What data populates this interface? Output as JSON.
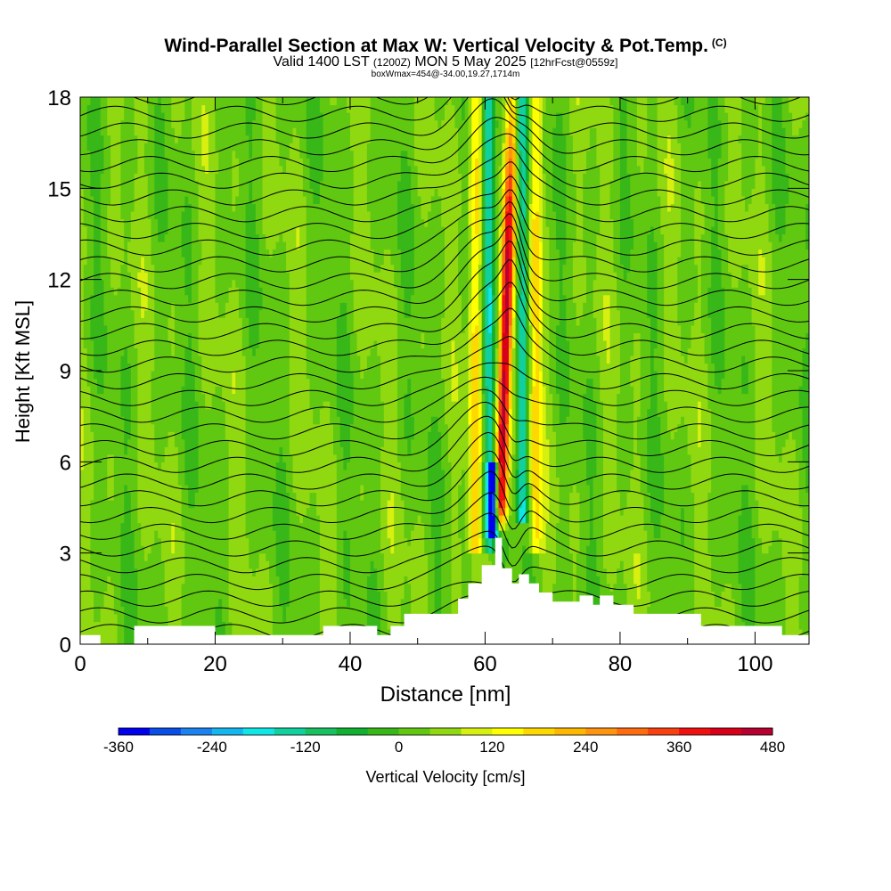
{
  "header": {
    "title": "Wind-Parallel Section at Max W: Vertical Velocity & Pot.Temp.",
    "title_mark": "(C)",
    "valid_prefix": "Valid 1400 LST",
    "valid_utc": "(1200Z)",
    "valid_date": "MON 5 May 2025",
    "forecast_info": "[12hrFcst@0559z]",
    "box_info": "boxWmax=454@-34.00,19.27,1714m"
  },
  "chart_data": {
    "type": "heatmap",
    "xlabel": "Distance [nm]",
    "ylabel": "Height [Kft MSL]",
    "xlim": [
      0,
      108
    ],
    "ylim": [
      0,
      18
    ],
    "x_ticks": [
      "0",
      "20",
      "40",
      "60",
      "80",
      "100"
    ],
    "y_ticks": [
      "0",
      "3",
      "6",
      "9",
      "12",
      "15",
      "18"
    ],
    "colorbar": {
      "label": "Vertical Velocity [cm/s]",
      "min": -360,
      "max": 480,
      "step": 40,
      "tick_labels": [
        "-360",
        "-240",
        "-120",
        "0",
        "120",
        "240",
        "360",
        "480"
      ],
      "colors": [
        "#0000ee",
        "#0a4ee8",
        "#1c82f0",
        "#14b6f0",
        "#10e6e6",
        "#10d0a0",
        "#18c060",
        "#10b030",
        "#38b818",
        "#60c810",
        "#90d810",
        "#d8f010",
        "#ffff00",
        "#ffd800",
        "#ffb800",
        "#ff9410",
        "#ff6c10",
        "#f84010",
        "#f01010",
        "#d80018",
        "#b80030"
      ]
    },
    "terrain_profile": {
      "x": [
        0,
        3,
        3,
        8,
        8,
        20,
        20,
        36,
        36,
        44,
        44,
        46,
        46,
        48,
        48,
        56,
        56,
        57.5,
        57.5,
        59.5,
        59.5,
        61.5,
        61.5,
        62.5,
        62.5,
        64,
        64,
        65,
        65,
        66.5,
        66.5,
        68,
        68,
        70,
        70,
        74,
        74,
        76,
        76,
        77,
        77,
        79,
        79,
        82,
        82,
        92,
        92,
        104,
        104,
        108
      ],
      "height": [
        0.3,
        0.3,
        0,
        0,
        0.6,
        0.6,
        0.3,
        0.3,
        0.6,
        0.6,
        0.3,
        0.3,
        0.6,
        0.6,
        1,
        1,
        1.5,
        1.5,
        2,
        2,
        2.6,
        2.6,
        3.5,
        3.5,
        2.5,
        2.5,
        2,
        2,
        2.3,
        2.3,
        2,
        2,
        1.7,
        1.7,
        1.4,
        1.4,
        1.6,
        1.6,
        1.3,
        1.3,
        1.6,
        1.6,
        1.3,
        1.3,
        1,
        1,
        0.6,
        0.6,
        0.3,
        0.3
      ]
    },
    "vertical_velocity_features": [
      {
        "x_center": 63.0,
        "height_range": [
          3.5,
          18
        ],
        "peak": 454,
        "sign": "updraft"
      },
      {
        "x_center": 58.5,
        "height_range": [
          3,
          18
        ],
        "peak": 160,
        "sign": "updraft"
      },
      {
        "x_center": 67.5,
        "height_range": [
          3,
          18
        ],
        "peak": 140,
        "sign": "updraft"
      },
      {
        "x_center": 60.5,
        "height_range": [
          3,
          18
        ],
        "peak": -180,
        "sign": "downdraft"
      },
      {
        "x_center": 65.5,
        "height_range": [
          4,
          18
        ],
        "peak": -200,
        "sign": "downdraft"
      },
      {
        "x_center": 61.2,
        "height_range": [
          3.5,
          6
        ],
        "peak": -340,
        "sign": "downdraft"
      }
    ]
  }
}
